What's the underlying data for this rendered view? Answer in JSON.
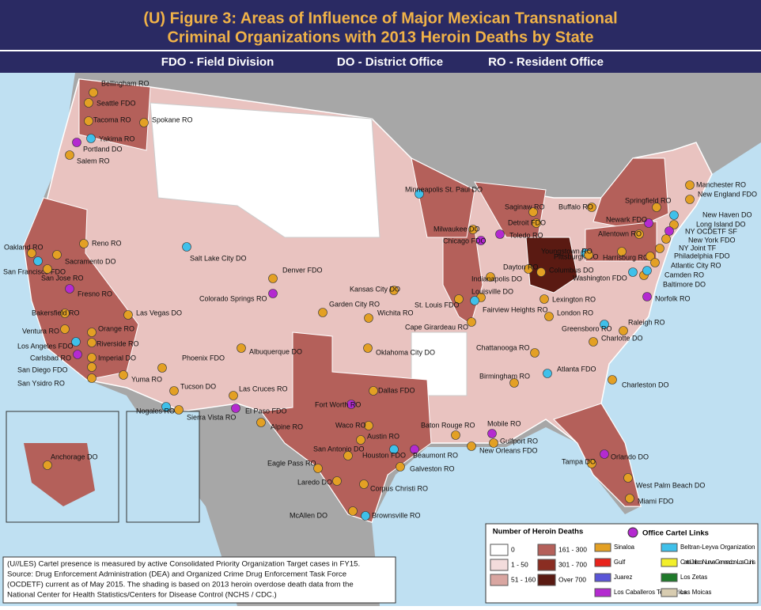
{
  "header": {
    "title": [
      "(U) Figure 3:  Areas of Influence of Major Mexican Transnational",
      "Criminal Organizations with 2013 Heroin Deaths by State"
    ],
    "key": [
      "FDO - Field Division",
      "DO - District Office",
      "RO - Resident Office"
    ]
  },
  "offices": [
    "Bellingham RO",
    "Seattle FDO",
    "Tacoma RO",
    "Yakima RO",
    "Spokane RO",
    "Portland DO",
    "Salem RO",
    "Oakland RO",
    "Reno RO",
    "Sacramento DO",
    "San Francisco FDO",
    "San Jose RO",
    "Fresno RO",
    "Bakersfield RO",
    "Las Vegas DO",
    "Ventura RO",
    "Orange RO",
    "Los Angeles FDO",
    "Riverside RO",
    "Carlsbad RO",
    "Imperial DO",
    "San Diego FDO",
    "San Ysidro RO",
    "Yuma RO",
    "Salt Lake City DO",
    "Denver FDO",
    "Colorado Springs RO",
    "Phoenix FDO",
    "Albuquerque DO",
    "Tucson DO",
    "Las Cruces RO",
    "Nogales RO",
    "Sierra Vista RO",
    "El Paso FDO",
    "Kansas City DO",
    "Garden City RO",
    "Wichita RO",
    "Oklahoma City DO",
    "Minneapolis St. Paul DO",
    "Milwaukee DO",
    "Chicago FDO",
    "St. Louis FDO",
    "Cape Girardeau RO",
    "Louisville DO",
    "Indianapolis DO",
    "Fairview Heights RO",
    "Dallas FDO",
    "Fort Worth RO",
    "Alpine RO",
    "Waco RO",
    "Austin RO",
    "San Antonio DO",
    "Houston FDO",
    "Eagle Pass RO",
    "Beaumont RO",
    "Galveston RO",
    "Laredo DO",
    "Corpus Christi RO",
    "McAllen DO",
    "Brownsville RO",
    "Baton Rouge RO",
    "Mobile RO",
    "Gulfport RO",
    "New Orleans FDO",
    "Birmingham RO",
    "Chattanooga RO",
    "Atlanta FDO",
    "Tampa DO",
    "Orlando DO",
    "West Palm Beach DO",
    "Miami FDO",
    "Charleston DO",
    "Charlotte DO",
    "Greensboro RO",
    "Raleigh RO",
    "Norfolk RO",
    "London RO",
    "Lexington RO",
    "Dayton RO",
    "Columbus DO",
    "Pittsburgh DO",
    "Youngstown RO",
    "Toledo RO",
    "Detroit FDO",
    "Saginaw RO",
    "Buffalo RO",
    "Harrisburg RO",
    "Washington FDO",
    "Baltimore DO",
    "Newark FDO",
    "Allentown RO",
    "Springfield RO",
    "Manchester RO",
    "New England FDO",
    "New Haven DO",
    "Long Island DO",
    "NY OCDETF SF",
    "New York FDO",
    "NY Joint TF",
    "Philadelphia FDO",
    "Atlantic City RO",
    "Camden RO",
    "Anchorage DO"
  ],
  "legend": {
    "deaths_title": "Number of Heroin Deaths",
    "deaths": [
      "0",
      "1 - 50",
      "51 - 160",
      "161 - 300",
      "301 - 700",
      "Over 700"
    ],
    "cartels_title": "Office Cartel Links",
    "cartels": [
      "Sinaloa",
      "Gulf",
      "Juarez",
      "Los Caballeros Templarios",
      "Beltran-Leyva Organization",
      "Cartel Jalisco Nueva Generacion-Los Cuinis",
      "Los Zetas",
      "Las Moicas"
    ]
  },
  "note": [
    "(U//LES) Cartel presence is measured by active Consolidated Priority Organization Target cases in FY15.",
    "Source: Drug Enforcement Administration (DEA) and Organized Crime Drug Enforcement Task Force",
    "(OCDETF) current as of May 2015.  The shading is based on 2013 heroin overdose death data from the",
    "National Center for Health Statistics/Centers for Disease Control (NCHS / CDC.)"
  ]
}
